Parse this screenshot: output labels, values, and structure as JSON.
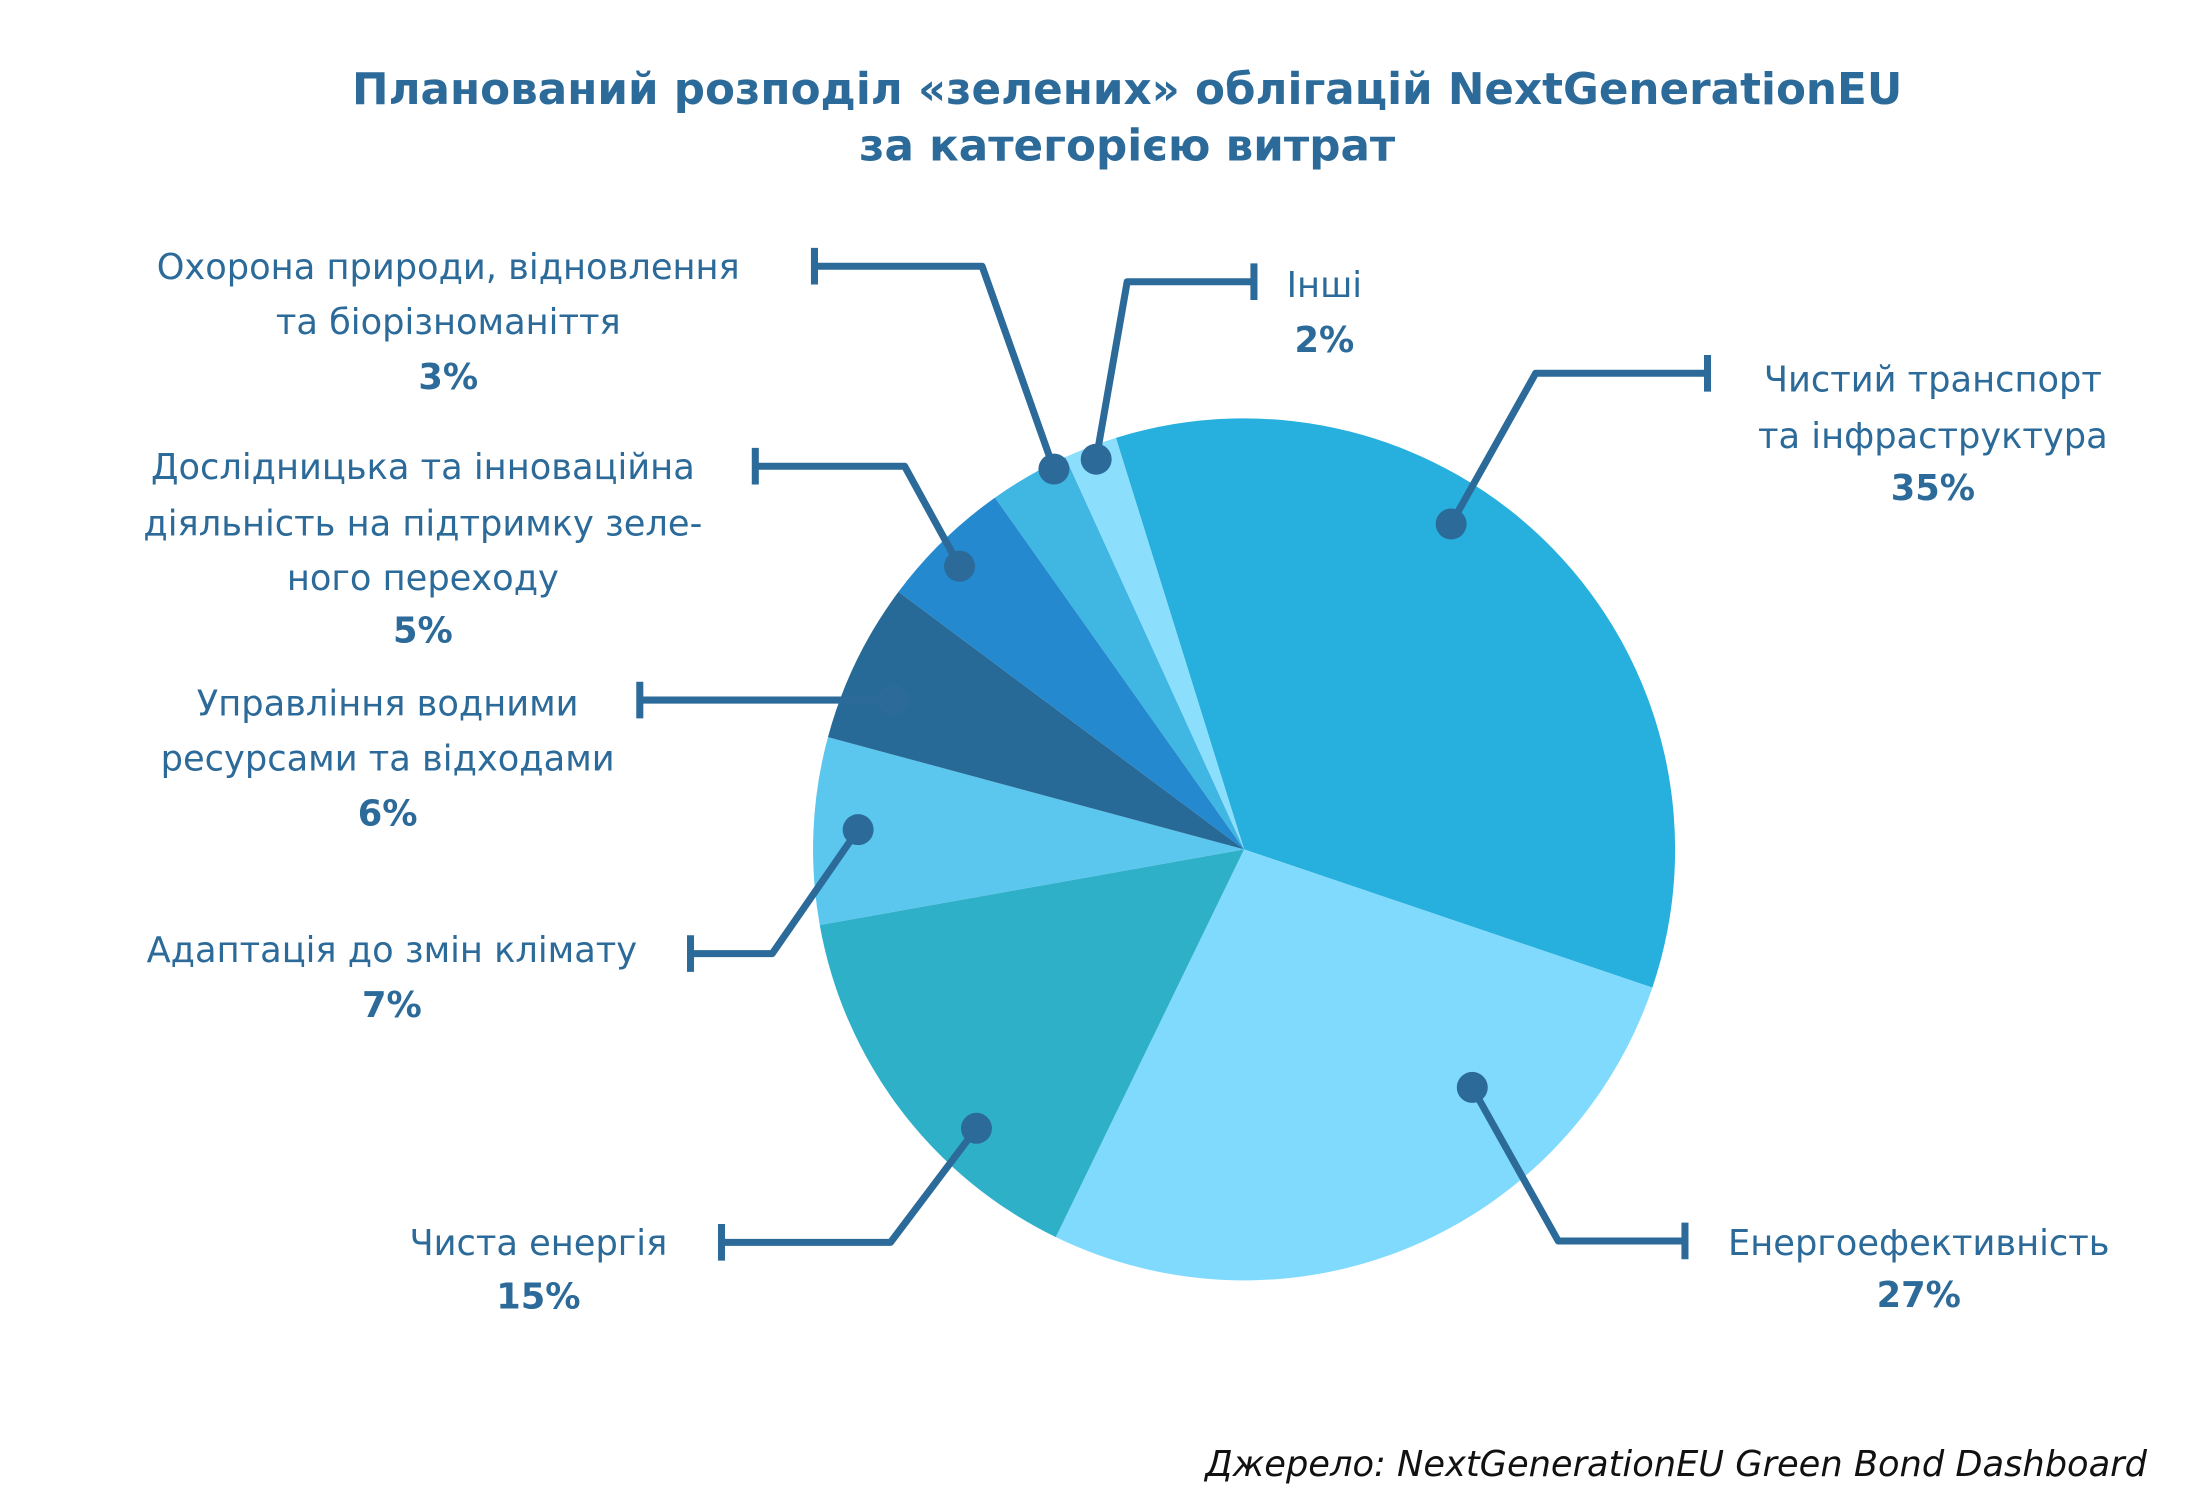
{
  "chart_data": {
    "type": "pie",
    "title_lines": [
      "Планований розподіл «зелених» облігацій NextGenerationEU",
      "за категорією витрат"
    ],
    "source": "Джерело: NextGenerationEU Green Bond Dashboard",
    "line_color": "#2B6A99",
    "slices": [
      {
        "label_lines": [
          "Чистий транспорт",
          "та інфраструктура"
        ],
        "value": 35,
        "value_label": "35%",
        "color": "#27B0DD"
      },
      {
        "label_lines": [
          "Енергоефективність"
        ],
        "value": 27,
        "value_label": "27%",
        "color": "#80DAFD"
      },
      {
        "label_lines": [
          "Чиста енергія"
        ],
        "value": 15,
        "value_label": "15%",
        "color": "#2FB0C9"
      },
      {
        "label_lines": [
          "Адаптація до змін клімату"
        ],
        "value": 7,
        "value_label": "7%",
        "color": "#5BC6EE"
      },
      {
        "label_lines": [
          "Управління водними",
          "ресурсами та відходами"
        ],
        "value": 6,
        "value_label": "6%",
        "color": "#276A97"
      },
      {
        "label_lines": [
          "Дослідницька та інноваційна",
          "діяльність на підтримку зеле-",
          "ного переходу"
        ],
        "value": 5,
        "value_label": "5%",
        "color": "#2489CE"
      },
      {
        "label_lines": [
          "Охорона природи, відновлення",
          "та біорізноманіття"
        ],
        "value": 3,
        "value_label": "3%",
        "color": "#40B6E2"
      },
      {
        "label_lines": [
          "Інші"
        ],
        "value": 2,
        "value_label": "2%",
        "color": "#8CDEFD"
      }
    ]
  }
}
